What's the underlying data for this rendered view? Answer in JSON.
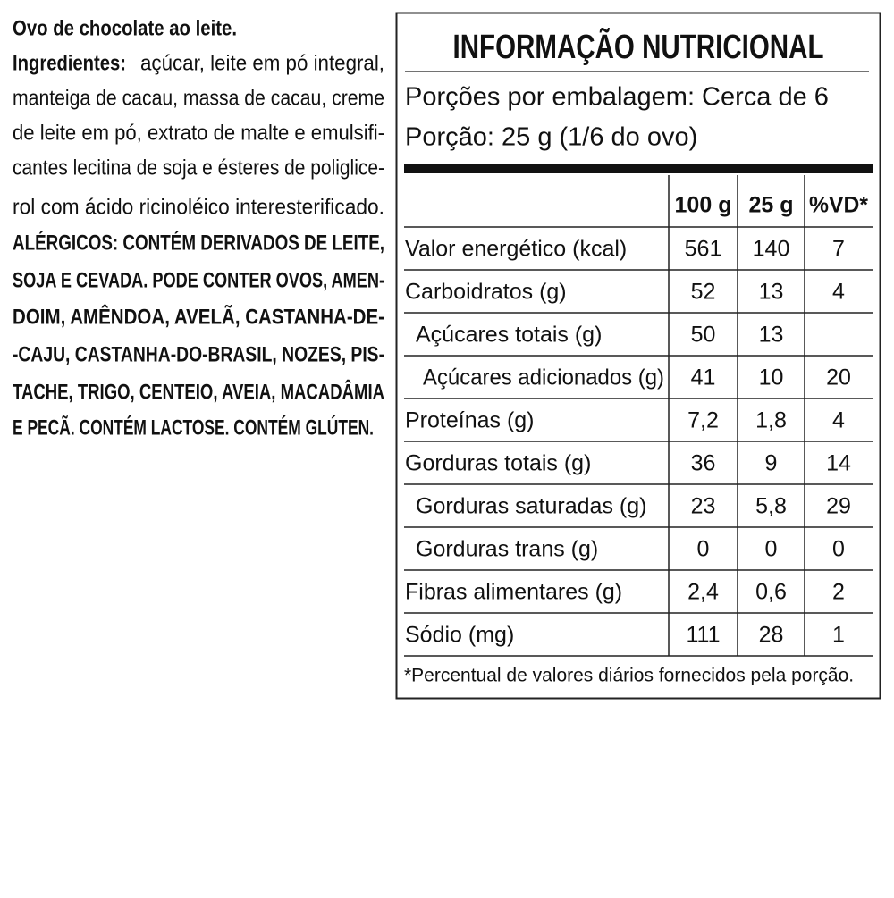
{
  "product": "Ovo de chocolate ao leite.",
  "ingredients": {
    "label": "Ingredientes:",
    "lines": [
      "açúcar, leite em pó integral,",
      "manteiga de cacau, massa de cacau, creme",
      "de leite em pó, extrato de malte e emulsifi-",
      "cantes lecitina de soja e ésteres de poliglice-",
      "rol com ácido ricinoléico interesterificado."
    ]
  },
  "allergens": {
    "lines": [
      "ALÉRGICOS: CONTÉM DERIVADOS DE LEITE,",
      "SOJA E CEVADA. PODE CONTER OVOS, AMEN-",
      "DOIM, AMÊNDOA, AVELÃ, CASTANHA-DE-",
      "-CAJU, CASTANHA-DO-BRASIL, NOZES, PIS-",
      "TACHE, TRIGO, CENTEIO, AVEIA, MACADÂMIA",
      "E PECÃ. CONTÉM LACTOSE. CONTÉM GLÚTEN."
    ]
  },
  "nutrition": {
    "title": "INFORMAÇÃO NUTRICIONAL",
    "servings": "Porções por embalagem: Cerca de 6",
    "serving_size": "Porção: 25 g (1/6 do ovo)",
    "header": [
      "100 g",
      "25 g",
      "%VD*"
    ],
    "rows": [
      [
        "Valor energético (kcal)",
        "561",
        "140",
        "7"
      ],
      [
        "Carboidratos (g)",
        "52",
        "13",
        "4"
      ],
      [
        "Açúcares totais (g)",
        "50",
        "13",
        null
      ],
      [
        "Açúcares adicionados (g)",
        "41",
        "10",
        "20"
      ],
      [
        "Proteínas (g)",
        "7,2",
        "1,8",
        "4"
      ],
      [
        "Gorduras totais (g)",
        "36",
        "9",
        "14"
      ],
      [
        "Gorduras saturadas (g)",
        "23",
        "5,8",
        "29"
      ],
      [
        "Gorduras trans (g)",
        "0",
        "0",
        "0"
      ],
      [
        "Fibras alimentares (g)",
        "2,4",
        "0,6",
        "2"
      ],
      [
        "Sódio (mg)",
        "111",
        "28",
        "1"
      ]
    ],
    "footnote": "*Percentual de valores diários fornecidos pela porção."
  }
}
